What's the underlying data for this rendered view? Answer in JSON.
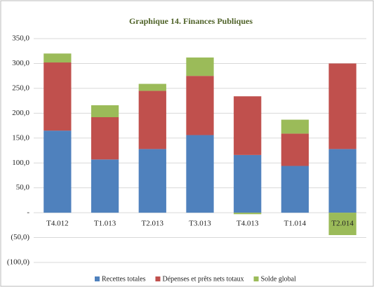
{
  "chart_data": {
    "type": "stacked_bar",
    "title": "Graphique 14. Finances Publiques",
    "categories": [
      "T4.012",
      "T1.013",
      "T2.013",
      "T3.013",
      "T4.013",
      "T1.014",
      "T2.014"
    ],
    "series": [
      {
        "name": "Recettes totales",
        "color": "#4f81bd",
        "values": [
          165,
          107,
          128,
          156,
          116,
          94,
          128
        ]
      },
      {
        "name": "Dépenses et prêts nets totaux",
        "color": "#c0504d",
        "values": [
          137,
          85,
          117,
          119,
          118,
          65,
          172
        ]
      },
      {
        "name": "Solde global",
        "color": "#9bbb59",
        "values": [
          18,
          24,
          14,
          37,
          -3,
          28,
          -45
        ]
      }
    ],
    "ylim": [
      -100,
      350
    ],
    "yticks": [
      {
        "value": -100,
        "label": "(100,0)"
      },
      {
        "value": -50,
        "label": "(50,0)"
      },
      {
        "value": 0,
        "label": "-"
      },
      {
        "value": 50,
        "label": "50,0"
      },
      {
        "value": 100,
        "label": "100,0"
      },
      {
        "value": 150,
        "label": "150,0"
      },
      {
        "value": 200,
        "label": "200,0"
      },
      {
        "value": 250,
        "label": "250,0"
      },
      {
        "value": 300,
        "label": "300,0"
      },
      {
        "value": 350,
        "label": "350,0"
      }
    ],
    "grid": true,
    "legend": "bottom"
  }
}
